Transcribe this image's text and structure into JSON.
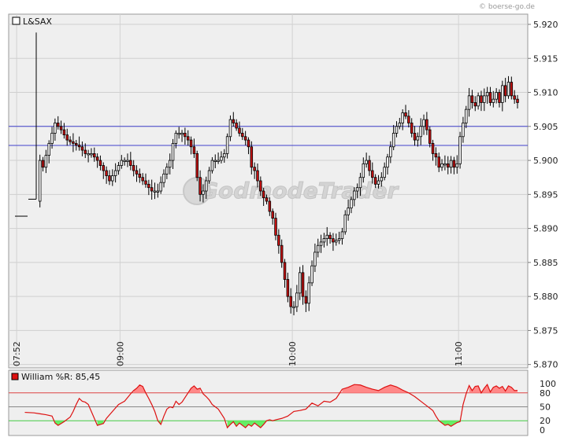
{
  "source_label": "© boerse-go.de",
  "watermark_text": "GodmodeTrader",
  "chart_data": [
    {
      "type": "candlestick",
      "legend": "L&SAX",
      "ylim": [
        5.8695,
        5.9215
      ],
      "y_ticks": [
        "5.920",
        "5.915",
        "5.910",
        "5.905",
        "5.900",
        "5.895",
        "5.890",
        "5.885",
        "5.880",
        "5.875",
        "5.870"
      ],
      "x_ticks": [
        "07:52",
        "09:00",
        "10:00",
        "11:00"
      ],
      "horizontal_lines": [
        5.905,
        5.9022
      ],
      "grid": true,
      "colors": {
        "up": "#ffffff",
        "down": "#cc1111",
        "outline": "#000000",
        "hline": "#4040cc",
        "background": "#efefef"
      },
      "price_path": [
        [
          0,
          5.892
        ],
        [
          6,
          5.892
        ],
        [
          7,
          5.894
        ],
        [
          8,
          5.9
        ],
        [
          9,
          5.899
        ],
        [
          11,
          5.9025
        ],
        [
          13,
          5.9055
        ],
        [
          15,
          5.9045
        ],
        [
          17,
          5.903
        ],
        [
          19,
          5.9025
        ],
        [
          21,
          5.902
        ],
        [
          23,
          5.901
        ],
        [
          25,
          5.901
        ],
        [
          27,
          5.9
        ],
        [
          29,
          5.8985
        ],
        [
          31,
          5.897
        ],
        [
          33,
          5.8985
        ],
        [
          35,
          5.9
        ],
        [
          37,
          5.9
        ],
        [
          39,
          5.8985
        ],
        [
          41,
          5.8975
        ],
        [
          43,
          5.8965
        ],
        [
          45,
          5.8955
        ],
        [
          47,
          5.8955
        ],
        [
          49,
          5.898
        ],
        [
          51,
          5.9
        ],
        [
          52,
          5.9025
        ],
        [
          53,
          5.904
        ],
        [
          55,
          5.904
        ],
        [
          57,
          5.903
        ],
        [
          59,
          5.901
        ],
        [
          60,
          5.8975
        ],
        [
          61,
          5.895
        ],
        [
          62,
          5.8955
        ],
        [
          64,
          5.8985
        ],
        [
          65,
          5.9
        ],
        [
          67,
          5.9
        ],
        [
          69,
          5.901
        ],
        [
          70,
          5.9035
        ],
        [
          71,
          5.906
        ],
        [
          72,
          5.9055
        ],
        [
          74,
          5.904
        ],
        [
          76,
          5.903
        ],
        [
          77,
          5.902
        ],
        [
          78,
          5.899
        ],
        [
          79,
          5.8985
        ],
        [
          80,
          5.897
        ],
        [
          81,
          5.8955
        ],
        [
          82,
          5.8945
        ],
        [
          83,
          5.894
        ],
        [
          84,
          5.8925
        ],
        [
          85,
          5.8915
        ],
        [
          86,
          5.889
        ],
        [
          87,
          5.8875
        ],
        [
          88,
          5.885
        ],
        [
          89,
          5.8825
        ],
        [
          90,
          5.88
        ],
        [
          91,
          5.8785
        ],
        [
          92,
          5.8785
        ],
        [
          93,
          5.8805
        ],
        [
          94,
          5.8835
        ],
        [
          95,
          5.88
        ],
        [
          96,
          5.879
        ],
        [
          97,
          5.882
        ],
        [
          98,
          5.8845
        ],
        [
          99,
          5.8865
        ],
        [
          100,
          5.8875
        ],
        [
          101,
          5.888
        ],
        [
          103,
          5.889
        ],
        [
          105,
          5.888
        ],
        [
          107,
          5.8885
        ],
        [
          108,
          5.8895
        ],
        [
          109,
          5.892
        ],
        [
          110,
          5.893
        ],
        [
          112,
          5.8955
        ],
        [
          113,
          5.896
        ],
        [
          114,
          5.8975
        ],
        [
          115,
          5.8995
        ],
        [
          116,
          5.9
        ],
        [
          117,
          5.8985
        ],
        [
          118,
          5.8975
        ],
        [
          119,
          5.8965
        ],
        [
          121,
          5.8975
        ],
        [
          122,
          5.899
        ],
        [
          123,
          5.9005
        ],
        [
          124,
          5.902
        ],
        [
          125,
          5.904
        ],
        [
          126,
          5.905
        ],
        [
          127,
          5.9055
        ],
        [
          128,
          5.907
        ],
        [
          129,
          5.9065
        ],
        [
          130,
          5.9055
        ],
        [
          131,
          5.904
        ],
        [
          132,
          5.903
        ],
        [
          133,
          5.9035
        ],
        [
          134,
          5.905
        ],
        [
          135,
          5.906
        ],
        [
          136,
          5.9045
        ],
        [
          137,
          5.9025
        ],
        [
          138,
          5.901
        ],
        [
          139,
          5.9005
        ],
        [
          140,
          5.899
        ],
        [
          141,
          5.8995
        ],
        [
          142,
          5.8995
        ],
        [
          143,
          5.899
        ],
        [
          144,
          5.9
        ],
        [
          145,
          5.899
        ],
        [
          146,
          5.8995
        ],
        [
          147,
          5.9035
        ],
        [
          148,
          5.9055
        ],
        [
          149,
          5.9075
        ],
        [
          150,
          5.9095
        ],
        [
          151,
          5.9085
        ],
        [
          152,
          5.908
        ],
        [
          153,
          5.9095
        ],
        [
          154,
          5.9085
        ],
        [
          155,
          5.9095
        ],
        [
          156,
          5.91
        ],
        [
          157,
          5.9085
        ],
        [
          158,
          5.909
        ],
        [
          159,
          5.91
        ],
        [
          160,
          5.9085
        ],
        [
          161,
          5.911
        ],
        [
          162,
          5.9095
        ],
        [
          163,
          5.9115
        ],
        [
          164,
          5.9095
        ],
        [
          165,
          5.909
        ],
        [
          166,
          5.9085
        ]
      ],
      "spike": {
        "high": 5.9188,
        "open": 5.8943,
        "close": 5.9002
      }
    },
    {
      "type": "line",
      "legend": "William %R: 85,45",
      "ylim": [
        0,
        100
      ],
      "y_ticks": [
        "100",
        "80",
        "50",
        "20",
        "0"
      ],
      "levels": [
        80,
        50,
        20
      ],
      "colors": {
        "line": "#dd1111",
        "overbought": "#ff8888",
        "oversold": "#66ee66",
        "level80": "#dd4444",
        "level20": "#44cc44"
      },
      "values_path": [
        [
          3,
          38
        ],
        [
          6,
          37
        ],
        [
          8,
          35
        ],
        [
          10,
          33
        ],
        [
          12,
          30
        ],
        [
          13,
          15
        ],
        [
          14,
          10
        ],
        [
          16,
          18
        ],
        [
          18,
          28
        ],
        [
          19,
          40
        ],
        [
          20,
          55
        ],
        [
          21,
          68
        ],
        [
          22,
          62
        ],
        [
          23,
          60
        ],
        [
          24,
          55
        ],
        [
          25,
          40
        ],
        [
          26,
          25
        ],
        [
          27,
          10
        ],
        [
          28,
          12
        ],
        [
          29,
          14
        ],
        [
          30,
          25
        ],
        [
          32,
          40
        ],
        [
          34,
          55
        ],
        [
          36,
          62
        ],
        [
          37,
          70
        ],
        [
          38,
          78
        ],
        [
          39,
          85
        ],
        [
          40,
          90
        ],
        [
          41,
          97
        ],
        [
          42,
          94
        ],
        [
          43,
          80
        ],
        [
          44,
          68
        ],
        [
          45,
          55
        ],
        [
          46,
          40
        ],
        [
          47,
          20
        ],
        [
          48,
          12
        ],
        [
          49,
          30
        ],
        [
          50,
          45
        ],
        [
          51,
          50
        ],
        [
          52,
          48
        ],
        [
          53,
          62
        ],
        [
          54,
          55
        ],
        [
          55,
          60
        ],
        [
          56,
          70
        ],
        [
          57,
          80
        ],
        [
          58,
          90
        ],
        [
          59,
          95
        ],
        [
          60,
          88
        ],
        [
          61,
          90
        ],
        [
          62,
          78
        ],
        [
          63,
          72
        ],
        [
          64,
          65
        ],
        [
          65,
          55
        ],
        [
          66,
          50
        ],
        [
          67,
          45
        ],
        [
          68,
          35
        ],
        [
          69,
          25
        ],
        [
          70,
          5
        ],
        [
          71,
          12
        ],
        [
          72,
          18
        ],
        [
          73,
          8
        ],
        [
          74,
          15
        ],
        [
          75,
          10
        ],
        [
          76,
          5
        ],
        [
          77,
          12
        ],
        [
          78,
          8
        ],
        [
          79,
          15
        ],
        [
          80,
          10
        ],
        [
          81,
          5
        ],
        [
          82,
          12
        ],
        [
          83,
          20
        ],
        [
          84,
          22
        ],
        [
          85,
          20
        ],
        [
          86,
          22
        ],
        [
          88,
          25
        ],
        [
          90,
          30
        ],
        [
          92,
          40
        ],
        [
          94,
          42
        ],
        [
          96,
          45
        ],
        [
          98,
          58
        ],
        [
          100,
          52
        ],
        [
          102,
          62
        ],
        [
          104,
          60
        ],
        [
          106,
          68
        ],
        [
          108,
          88
        ],
        [
          110,
          92
        ],
        [
          112,
          98
        ],
        [
          114,
          97
        ],
        [
          116,
          92
        ],
        [
          118,
          88
        ],
        [
          120,
          85
        ],
        [
          122,
          92
        ],
        [
          124,
          97
        ],
        [
          126,
          93
        ],
        [
          128,
          86
        ],
        [
          130,
          80
        ],
        [
          132,
          72
        ],
        [
          134,
          62
        ],
        [
          136,
          52
        ],
        [
          138,
          42
        ],
        [
          139,
          30
        ],
        [
          140,
          20
        ],
        [
          141,
          15
        ],
        [
          142,
          10
        ],
        [
          143,
          12
        ],
        [
          144,
          8
        ],
        [
          145,
          12
        ],
        [
          146,
          16
        ],
        [
          147,
          18
        ],
        [
          148,
          55
        ],
        [
          149,
          78
        ],
        [
          150,
          96
        ],
        [
          151,
          85
        ],
        [
          152,
          94
        ],
        [
          153,
          95
        ],
        [
          154,
          80
        ],
        [
          155,
          90
        ],
        [
          156,
          98
        ],
        [
          157,
          82
        ],
        [
          158,
          92
        ],
        [
          159,
          95
        ],
        [
          160,
          90
        ],
        [
          161,
          94
        ],
        [
          162,
          84
        ],
        [
          163,
          95
        ],
        [
          164,
          92
        ],
        [
          165,
          85
        ],
        [
          166,
          85.45
        ]
      ]
    }
  ]
}
